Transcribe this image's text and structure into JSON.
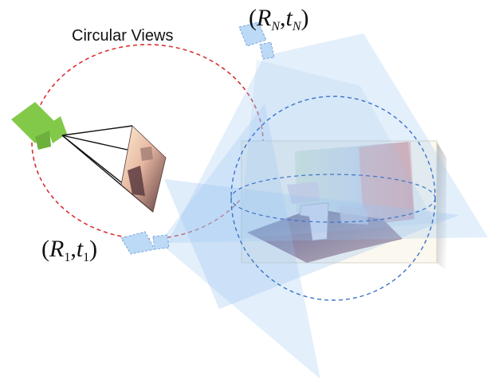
{
  "labels": {
    "title": "Circular Views",
    "pose_n": {
      "open": "(",
      "r": "R",
      "r_sub": "N",
      "comma": ",",
      "t": "t",
      "t_sub": "N",
      "close": ")"
    },
    "pose_1": {
      "open": "(",
      "r": "R",
      "r_sub": "1",
      "comma": ",",
      "t": "t",
      "t_sub": "1",
      "close": ")"
    }
  },
  "colors": {
    "orbit": "#d9302f",
    "sphere": "#3b73c8",
    "camera": "#82c94a",
    "frustum": "#9cc4f0",
    "small_camera": "#bcd9f5"
  },
  "icons": {
    "main_camera": "video-camera-icon",
    "view_camera": "small-camera-icon"
  }
}
